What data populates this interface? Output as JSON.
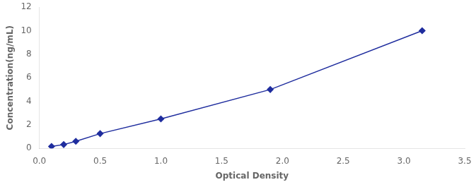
{
  "chart_data": {
    "type": "line",
    "x": [
      0.1,
      0.2,
      0.3,
      0.5,
      1.0,
      1.9,
      3.15
    ],
    "values": [
      0.16,
      0.32,
      0.6,
      1.25,
      2.5,
      5.0,
      10.0
    ],
    "color": "#1F2D9E",
    "marker": "diamond",
    "line_style": "solid",
    "xlabel": "Optical Density",
    "ylabel": "Concentration(ng/mL)",
    "xlim": [
      0,
      3.5
    ],
    "ylim": [
      0,
      12
    ],
    "xticks": [
      {
        "value": 0,
        "label": "0.0"
      },
      0.5,
      {
        "value": 1,
        "label": "1.0"
      },
      1.5,
      {
        "value": 2,
        "label": "2.0"
      },
      2.5,
      {
        "value": 3,
        "label": "3.0"
      },
      3.5
    ],
    "yticks": [
      0,
      2,
      4,
      6,
      8,
      10,
      12
    ],
    "grid": false
  }
}
